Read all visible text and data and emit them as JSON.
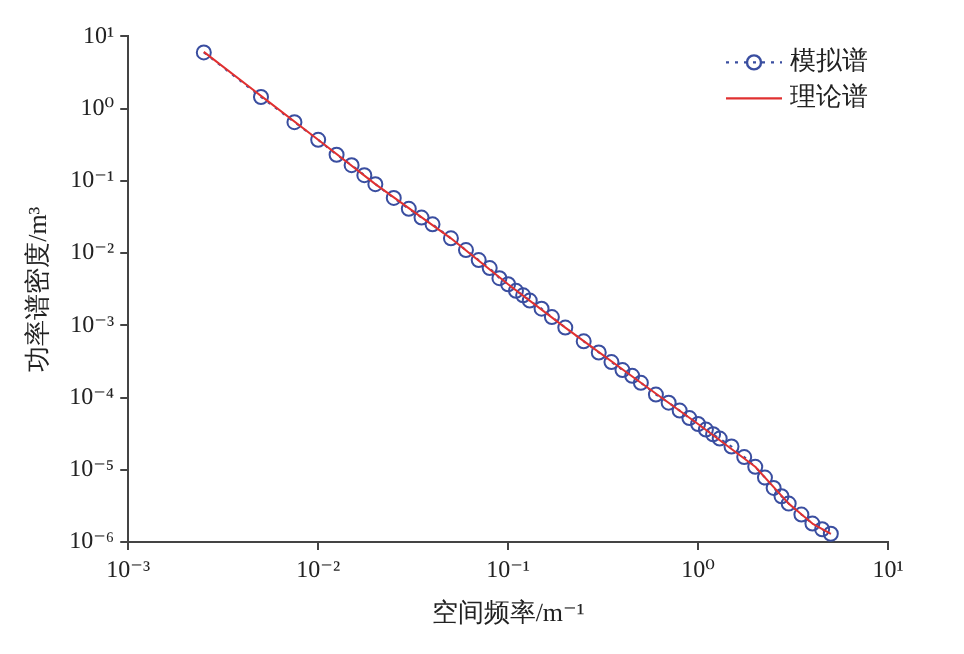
{
  "chart_data": {
    "type": "line",
    "xlabel": "空间频率/m⁻¹",
    "ylabel": "功率谱密度/m³",
    "log": "xy",
    "grid": false,
    "legend": "top right",
    "xlim": [
      0.001,
      10
    ],
    "ylim": [
      1e-06,
      10
    ],
    "xticks": [
      {
        "value": 0.001,
        "label": "10⁻³"
      },
      {
        "value": 0.01,
        "label": "10⁻²"
      },
      {
        "value": 0.1,
        "label": "10⁻¹"
      },
      {
        "value": 1,
        "label": "10⁰"
      },
      {
        "value": 10,
        "label": "10¹"
      }
    ],
    "yticks": [
      {
        "value": 1e-06,
        "label": "10⁻⁶"
      },
      {
        "value": 1e-05,
        "label": "10⁻⁵"
      },
      {
        "value": 0.0001,
        "label": "10⁻⁴"
      },
      {
        "value": 0.001,
        "label": "10⁻³"
      },
      {
        "value": 0.01,
        "label": "10⁻²"
      },
      {
        "value": 0.1,
        "label": "10⁻¹"
      },
      {
        "value": 1,
        "label": "10⁰"
      },
      {
        "value": 10,
        "label": "10¹"
      }
    ],
    "series": [
      {
        "name": "模拟谱",
        "color": "#3a4ea0",
        "marker": "circle",
        "line_style": "dotted",
        "x": [
          0.0025,
          0.005,
          0.0075,
          0.01,
          0.0125,
          0.015,
          0.0175,
          0.02,
          0.025,
          0.03,
          0.035,
          0.04,
          0.05,
          0.06,
          0.07,
          0.08,
          0.09,
          0.1,
          0.11,
          0.12,
          0.13,
          0.15,
          0.17,
          0.2,
          0.25,
          0.3,
          0.35,
          0.4,
          0.45,
          0.5,
          0.6,
          0.7,
          0.8,
          0.9,
          1,
          1.1,
          1.2,
          1.3,
          1.5,
          1.75,
          2,
          2.25,
          2.5,
          2.75,
          3,
          3.5,
          4,
          4.5,
          5
        ],
        "values": [
          6,
          1.45,
          0.65,
          0.37,
          0.23,
          0.165,
          0.12,
          0.09,
          0.058,
          0.041,
          0.031,
          0.025,
          0.016,
          0.011,
          0.008,
          0.0062,
          0.0045,
          0.0037,
          0.003,
          0.0026,
          0.0022,
          0.0017,
          0.0013,
          0.00093,
          0.0006,
          0.00042,
          0.00031,
          0.00024,
          0.0002,
          0.00016,
          0.00011,
          8.5e-05,
          6.6e-05,
          5.2e-05,
          4.3e-05,
          3.6e-05,
          3.1e-05,
          2.7e-05,
          2.1e-05,
          1.5e-05,
          1.1e-05,
          7.8e-06,
          5.6e-06,
          4.3e-06,
          3.4e-06,
          2.4e-06,
          1.8e-06,
          1.5e-06,
          1.3e-06
        ]
      },
      {
        "name": "理论谱",
        "color": "#e03030",
        "marker": "none",
        "line_style": "solid",
        "x": [
          0.0025,
          0.005,
          0.01,
          0.02,
          0.05,
          0.1,
          0.2,
          0.5,
          1,
          2,
          3,
          4,
          5
        ],
        "values": [
          6.1,
          1.5,
          0.37,
          0.09,
          0.016,
          0.0037,
          0.00093,
          0.00016,
          4.3e-05,
          1.1e-05,
          3.4e-06,
          1.8e-06,
          1.3e-06
        ]
      }
    ]
  }
}
